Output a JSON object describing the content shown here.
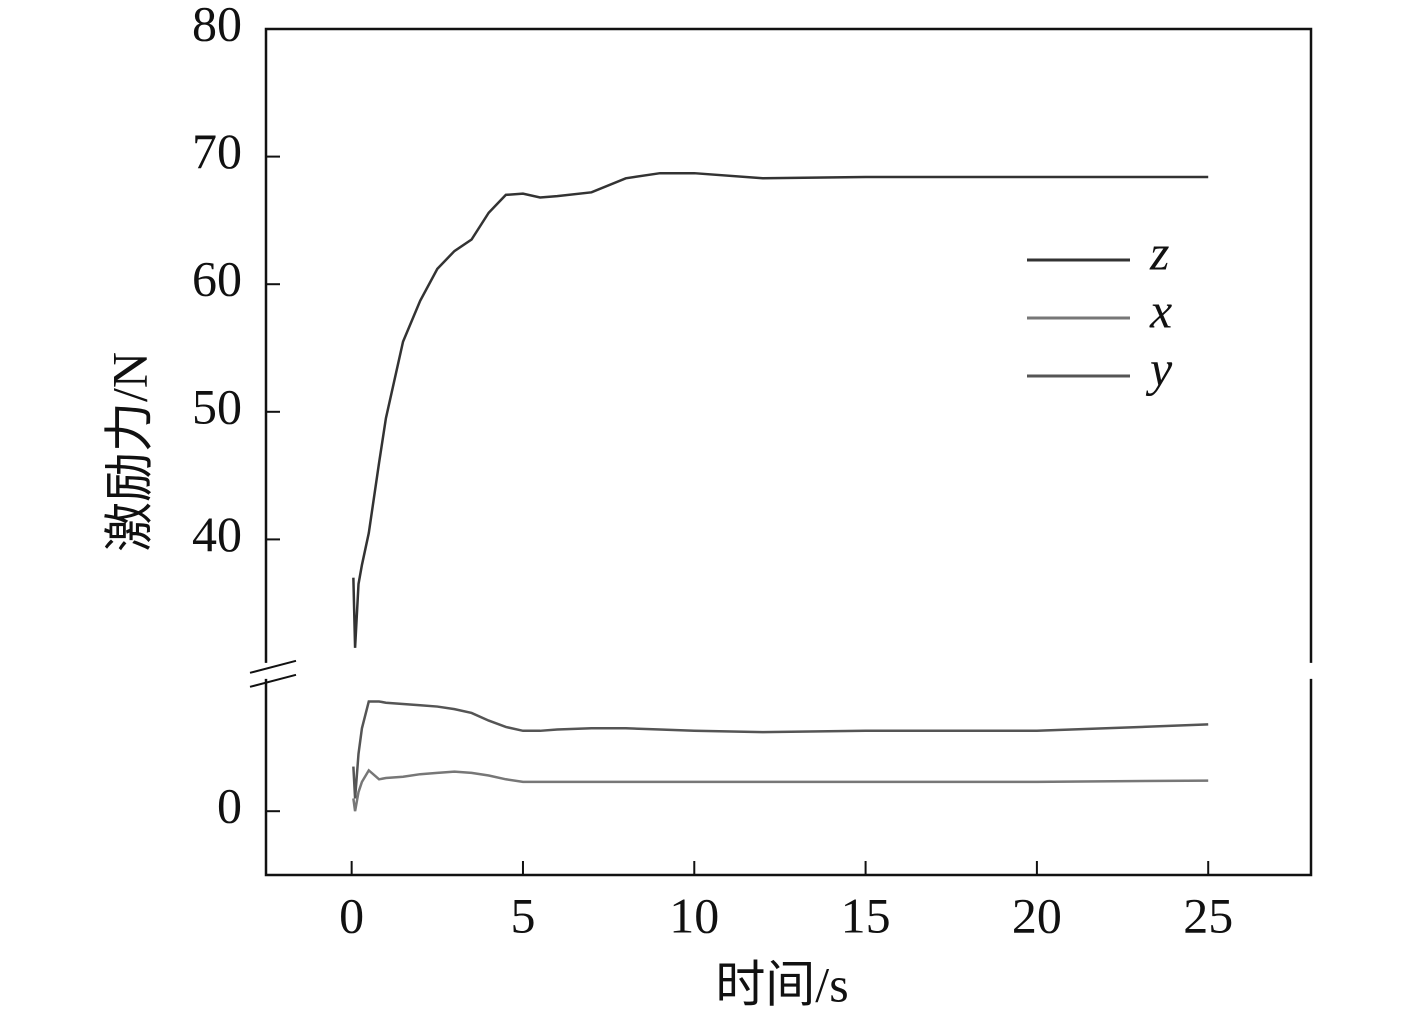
{
  "chart_data": {
    "type": "line",
    "xlabel": "时间/s",
    "ylabel": "激励力/N",
    "x": [
      0.05,
      0.1,
      0.2,
      0.3,
      0.5,
      0.8,
      1,
      1.5,
      2,
      2.5,
      3,
      3.5,
      4,
      4.5,
      5,
      5.5,
      6,
      7,
      8,
      9,
      10,
      12,
      15,
      20,
      25
    ],
    "series": [
      {
        "name": "z",
        "color": "#333333",
        "values": [
          37,
          31.5,
          36.5,
          38,
          40.5,
          46,
          49.5,
          55.5,
          58.7,
          61.2,
          62.6,
          63.5,
          65.6,
          67,
          67.1,
          66.8,
          66.9,
          67.2,
          68.3,
          68.7,
          68.7,
          68.3,
          68.4,
          68.4,
          68.4
        ]
      },
      {
        "name": "x",
        "color": "#777777",
        "values": [
          1,
          0,
          1.5,
          2.3,
          3.2,
          2.5,
          2.6,
          2.7,
          2.9,
          3,
          3.1,
          3,
          2.8,
          2.5,
          2.3,
          2.3,
          2.3,
          2.3,
          2.3,
          2.3,
          2.3,
          2.3,
          2.3,
          2.3,
          2.4
        ]
      },
      {
        "name": "y",
        "color": "#555555",
        "values": [
          3.5,
          1,
          4.5,
          6.5,
          8.6,
          8.6,
          8.5,
          8.4,
          8.3,
          8.2,
          8,
          7.7,
          7.1,
          6.6,
          6.3,
          6.3,
          6.4,
          6.5,
          6.5,
          6.4,
          6.3,
          6.2,
          6.3,
          6.3,
          6.8
        ]
      }
    ],
    "xlim": [
      -2.5,
      28
    ],
    "xticks": [
      0,
      5,
      10,
      15,
      20,
      25
    ],
    "ylim": [
      -5,
      80
    ],
    "ybreak": [
      11,
      29.7
    ],
    "yticks": [
      0,
      40,
      50,
      60,
      70,
      80
    ],
    "legend": "upper right"
  }
}
